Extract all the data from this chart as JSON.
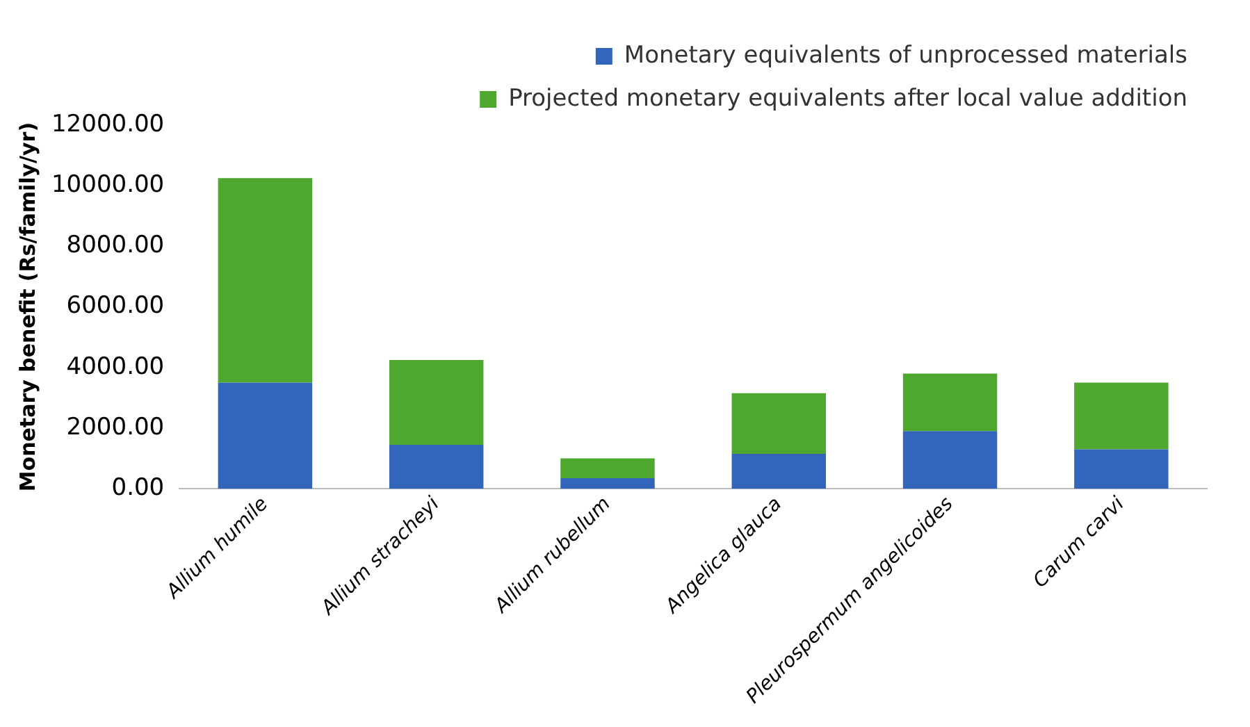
{
  "chart_data": {
    "type": "bar",
    "stacked": true,
    "ylabel": "Monetary benefit (Rs/family/yr)",
    "categories": [
      "Allium humile",
      "Allium stracheyi",
      "Allium rubellum",
      "Angelica glauca",
      "Pleurospermum angelicoides",
      "Carum carvi"
    ],
    "series": [
      {
        "name": "Monetary equivalents of unprocessed materials",
        "color": "#3366bb",
        "values": [
          3500,
          1450,
          350,
          1150,
          1900,
          1300
        ]
      },
      {
        "name": "Projected monetary equivalents after local value addition",
        "color": "#4ea72e",
        "values": [
          6750,
          2800,
          650,
          2000,
          1900,
          2200
        ]
      }
    ],
    "ylim": [
      0,
      12000
    ],
    "yticks": [
      {
        "value": 0,
        "label": "0.00"
      },
      {
        "value": 2000,
        "label": "2000.00"
      },
      {
        "value": 4000,
        "label": "4000.00"
      },
      {
        "value": 6000,
        "label": "6000.00"
      },
      {
        "value": 8000,
        "label": "8000.00"
      },
      {
        "value": 10000,
        "label": "10000.00"
      },
      {
        "value": 12000,
        "label": "12000.00"
      }
    ],
    "grid": false,
    "legend": "top right"
  }
}
